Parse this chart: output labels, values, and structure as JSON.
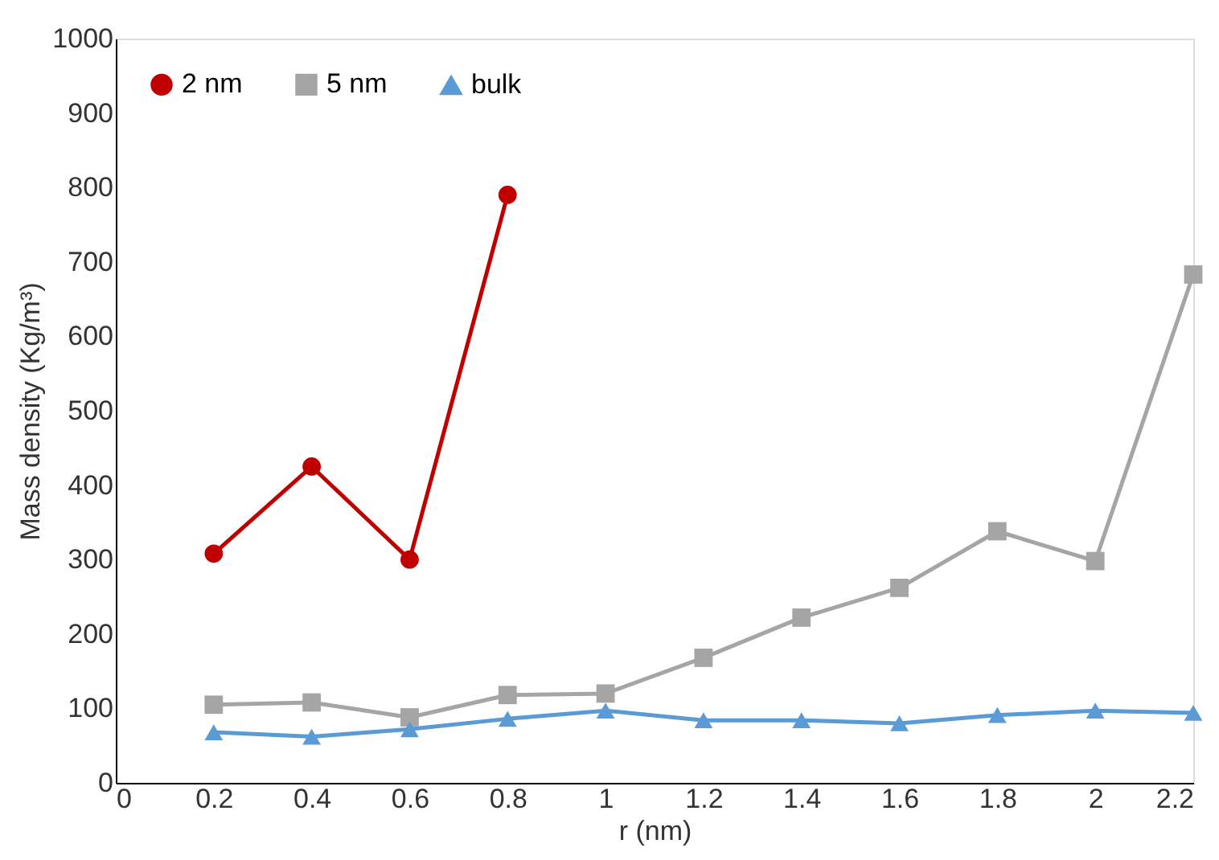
{
  "chart_data": {
    "type": "line",
    "xlabel": "r (nm)",
    "ylabel": "Mass density (Kg/m³)",
    "xlim": [
      0,
      2.2
    ],
    "xticks": [
      0,
      0.2,
      0.4,
      0.6,
      0.8,
      1,
      1.2,
      1.4,
      1.6,
      1.8,
      2,
      2.2
    ],
    "ylim": [
      0,
      1000
    ],
    "yticks": [
      0,
      100,
      200,
      300,
      400,
      500,
      600,
      700,
      800,
      900,
      1000
    ],
    "grid": false,
    "legend": "top left",
    "series": [
      {
        "name": "2 nm",
        "color": "#c00000",
        "marker": "circle",
        "x": [
          0.2,
          0.4,
          0.6,
          0.8
        ],
        "values": [
          308,
          425,
          300,
          790
        ]
      },
      {
        "name": "5 nm",
        "color": "#a5a5a5",
        "marker": "square",
        "x": [
          0.2,
          0.4,
          0.6,
          0.8,
          1,
          1.2,
          1.4,
          1.6,
          1.8,
          2,
          2.2
        ],
        "values": [
          105,
          108,
          88,
          118,
          120,
          168,
          222,
          262,
          338,
          298,
          683
        ]
      },
      {
        "name": "bulk",
        "color": "#5b9bd5",
        "marker": "triangle",
        "x": [
          0.2,
          0.4,
          0.6,
          0.8,
          1,
          1.2,
          1.4,
          1.6,
          1.8,
          2,
          2.2
        ],
        "values": [
          68,
          62,
          72,
          86,
          97,
          84,
          84,
          80,
          91,
          97,
          94
        ]
      }
    ]
  }
}
